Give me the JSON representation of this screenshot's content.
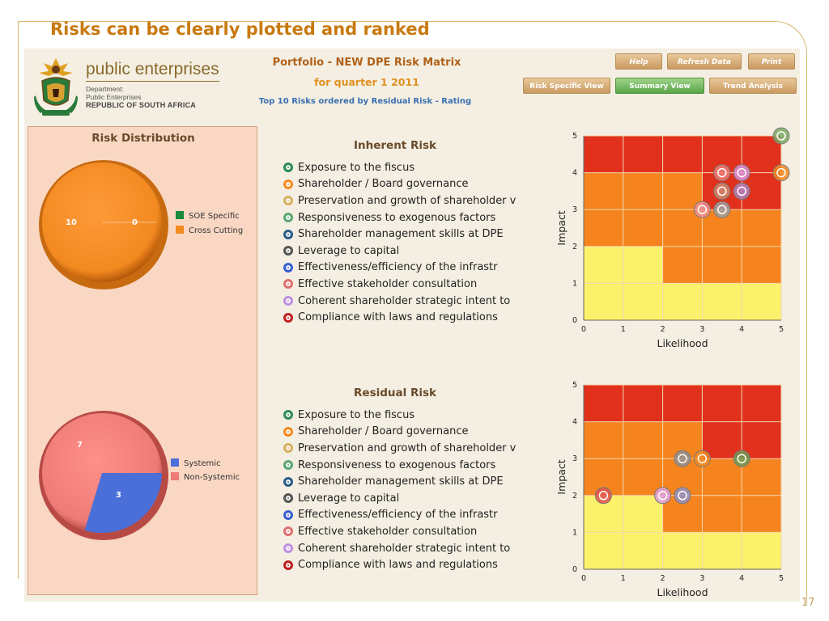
{
  "slide": {
    "title": "Risks can be clearly plotted and ranked",
    "page_number": "17"
  },
  "header": {
    "brand_name": "public enterprises",
    "brand_line1": "Department:",
    "brand_line2": "Public Enterprises",
    "brand_line3": "REPUBLIC OF SOUTH AFRICA",
    "title": "Portfolio - NEW DPE Risk Matrix",
    "quarter": "for quarter 1 2011",
    "subtitle": "Top 10 Risks ordered by Residual Risk - Rating"
  },
  "buttons": {
    "help": "Help",
    "refresh": "Refresh Data",
    "print": "Print",
    "risk_specific": "Risk Specific View",
    "summary": "Summary View",
    "trend": "Trend Analysis"
  },
  "distribution": {
    "title": "Risk Distribution",
    "pie1": {
      "slices": [
        {
          "label": "SOE Specific",
          "value": 0,
          "color": "#1a8a3a"
        },
        {
          "label": "Cross Cutting",
          "value": 10,
          "color": "#f28a20"
        }
      ],
      "labels": [
        "10",
        "0"
      ]
    },
    "pie2": {
      "slices": [
        {
          "label": "Systemic",
          "value": 3,
          "color": "#4a6fd8"
        },
        {
          "label": "Non-Systemic",
          "value": 7,
          "color": "#ee7b76"
        }
      ],
      "labels": [
        "7",
        "3"
      ]
    }
  },
  "inherent": {
    "title": "Inherent Risk",
    "risks": [
      {
        "name": "Exposure to the fiscus",
        "color": "#2e8b57"
      },
      {
        "name": "Shareholder / Board governance",
        "color": "#f28a20"
      },
      {
        "name": "Preservation and growth of shareholder v",
        "color": "#d4b060"
      },
      {
        "name": "Responsiveness to exogenous factors",
        "color": "#5aa870"
      },
      {
        "name": "Shareholder management skills at DPE",
        "color": "#2a5d8a"
      },
      {
        "name": "Leverage to capital",
        "color": "#555555"
      },
      {
        "name": "Effectiveness/efficiency of the infrastr",
        "color": "#3a5fd0"
      },
      {
        "name": "Effective stakeholder consultation",
        "color": "#e07070"
      },
      {
        "name": "Coherent shareholder strategic intent to",
        "color": "#c090e0"
      },
      {
        "name": "Compliance with laws and regulations",
        "color": "#c02020"
      }
    ]
  },
  "residual": {
    "title": "Residual Risk",
    "risks": [
      {
        "name": "Exposure to the fiscus",
        "color": "#2e8b57"
      },
      {
        "name": "Shareholder / Board governance",
        "color": "#f28a20"
      },
      {
        "name": "Preservation and growth of shareholder v",
        "color": "#d4b060"
      },
      {
        "name": "Responsiveness to exogenous factors",
        "color": "#5aa870"
      },
      {
        "name": "Shareholder management skills at DPE",
        "color": "#2a5d8a"
      },
      {
        "name": "Leverage to capital",
        "color": "#555555"
      },
      {
        "name": "Effectiveness/efficiency of the infrastr",
        "color": "#3a5fd0"
      },
      {
        "name": "Effective stakeholder consultation",
        "color": "#e07070"
      },
      {
        "name": "Coherent shareholder strategic intent to",
        "color": "#c090e0"
      },
      {
        "name": "Compliance with laws and regulations",
        "color": "#c02020"
      }
    ]
  },
  "chart_data": [
    {
      "type": "scatter",
      "title": "",
      "xlabel": "Likelihood",
      "ylabel": "Impact",
      "xlim": [
        0,
        5
      ],
      "ylim": [
        0,
        5
      ],
      "xticks": [
        "0",
        "1",
        "2",
        "3",
        "4",
        "5"
      ],
      "yticks": [
        "0",
        "1",
        "2",
        "3",
        "4",
        "5"
      ],
      "points": [
        {
          "x": 5.0,
          "y": 5.0,
          "color": "#7aa860"
        },
        {
          "x": 3.5,
          "y": 4.0,
          "color": "#ee7b76"
        },
        {
          "x": 4.0,
          "y": 4.0,
          "color": "#d890d8"
        },
        {
          "x": 5.0,
          "y": 4.0,
          "color": "#f28a20"
        },
        {
          "x": 3.5,
          "y": 3.5,
          "color": "#d08a70"
        },
        {
          "x": 4.0,
          "y": 3.5,
          "color": "#b080c0"
        },
        {
          "x": 3.0,
          "y": 3.0,
          "color": "#ee9090"
        },
        {
          "x": 3.5,
          "y": 3.0,
          "color": "#a0a0a0"
        }
      ]
    },
    {
      "type": "scatter",
      "title": "",
      "xlabel": "Likelihood",
      "ylabel": "Impact",
      "xlim": [
        0,
        5
      ],
      "ylim": [
        0,
        5
      ],
      "xticks": [
        "0",
        "1",
        "2",
        "3",
        "4",
        "5"
      ],
      "yticks": [
        "0",
        "1",
        "2",
        "3",
        "4",
        "5"
      ],
      "points": [
        {
          "x": 0.5,
          "y": 2.0,
          "color": "#e05050"
        },
        {
          "x": 2.0,
          "y": 2.0,
          "color": "#e0a0e0"
        },
        {
          "x": 2.5,
          "y": 2.0,
          "color": "#9090c8"
        },
        {
          "x": 2.5,
          "y": 3.0,
          "color": "#909090"
        },
        {
          "x": 3.0,
          "y": 3.0,
          "color": "#f28a20"
        },
        {
          "x": 4.0,
          "y": 3.0,
          "color": "#6a9a50"
        }
      ]
    }
  ]
}
